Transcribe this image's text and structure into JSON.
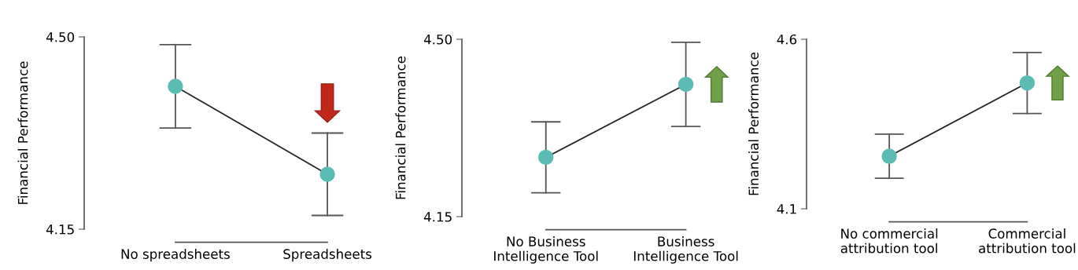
{
  "chart_data": [
    {
      "type": "line",
      "ylabel": "Financial Performance",
      "categories": [
        "No spreadsheets",
        "Spreadsheets"
      ],
      "ylim": [
        4.15,
        4.5
      ],
      "yticks": [
        {
          "value": 4.5,
          "label": "4.50"
        },
        4.15
      ],
      "marker": "circle",
      "grid": false,
      "series": [
        {
          "color": "#5bbcb5",
          "values": [
            4.41,
            4.25
          ],
          "errors": [
            0.076,
            0.075
          ]
        }
      ]
    },
    {
      "type": "line",
      "ylabel": "Financial Performance",
      "categories": [
        "No Business\nIntelligence Tool",
        "Business\nIntelligence Tool"
      ],
      "ylim": [
        4.15,
        4.5
      ],
      "yticks": [
        {
          "value": 4.5,
          "label": "4.50"
        },
        4.15
      ],
      "marker": "circle",
      "grid": false,
      "series": [
        {
          "color": "#5bbcb5",
          "values": [
            4.267,
            4.411
          ],
          "errors": [
            0.07,
            0.083
          ]
        }
      ]
    },
    {
      "type": "line",
      "ylabel": "Financial Performance",
      "categories": [
        "No commercial\nattribution tool",
        "Commercial\nattribution tool"
      ],
      "ylim": [
        4.1,
        4.6
      ],
      "yticks": [
        4.6,
        4.1
      ],
      "marker": "circle",
      "grid": false,
      "series": [
        {
          "color": "#5bbcb5",
          "values": [
            4.255,
            4.471
          ],
          "errors": [
            0.065,
            0.09
          ]
        }
      ]
    }
  ]
}
